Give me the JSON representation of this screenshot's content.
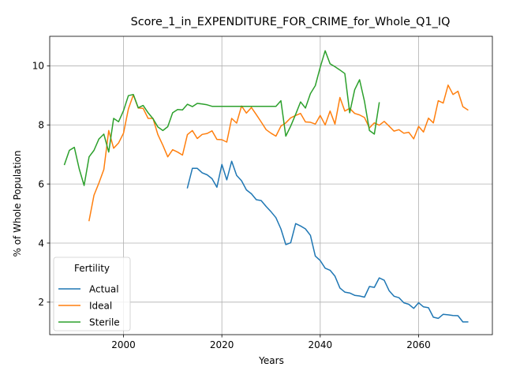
{
  "chart_data": {
    "type": "line",
    "title": "Score_1_in_EXPENDITURE_FOR_CRIME_for_Whole_Q1_IQ",
    "xlabel": "Years",
    "ylabel": "% of Whole Population",
    "xlim": [
      1985,
      2075
    ],
    "ylim": [
      0.9,
      11.0
    ],
    "xticks": [
      2000,
      2020,
      2040,
      2060
    ],
    "yticks": [
      2,
      4,
      6,
      8,
      10
    ],
    "grid": true,
    "legend": {
      "title": "Fertility",
      "placement": "lower-left"
    },
    "series": [
      {
        "name": "Actual",
        "color": "#1f77b4",
        "points": [
          [
            2013,
            5.87
          ],
          [
            2014,
            6.53
          ],
          [
            2015,
            6.53
          ],
          [
            2016,
            6.38
          ],
          [
            2017,
            6.31
          ],
          [
            2018,
            6.18
          ],
          [
            2019,
            5.89
          ],
          [
            2020,
            6.66
          ],
          [
            2021,
            6.14
          ],
          [
            2022,
            6.77
          ],
          [
            2023,
            6.29
          ],
          [
            2024,
            6.11
          ],
          [
            2025,
            5.8
          ],
          [
            2026,
            5.67
          ],
          [
            2027,
            5.47
          ],
          [
            2028,
            5.44
          ],
          [
            2029,
            5.24
          ],
          [
            2030,
            5.06
          ],
          [
            2031,
            4.86
          ],
          [
            2032,
            4.48
          ],
          [
            2033,
            3.95
          ],
          [
            2034,
            4.01
          ],
          [
            2035,
            4.66
          ],
          [
            2036,
            4.58
          ],
          [
            2037,
            4.48
          ],
          [
            2038,
            4.26
          ],
          [
            2039,
            3.56
          ],
          [
            2040,
            3.41
          ],
          [
            2041,
            3.15
          ],
          [
            2042,
            3.08
          ],
          [
            2043,
            2.88
          ],
          [
            2044,
            2.48
          ],
          [
            2045,
            2.34
          ],
          [
            2046,
            2.31
          ],
          [
            2047,
            2.23
          ],
          [
            2048,
            2.21
          ],
          [
            2049,
            2.17
          ],
          [
            2050,
            2.53
          ],
          [
            2051,
            2.5
          ],
          [
            2052,
            2.82
          ],
          [
            2053,
            2.74
          ],
          [
            2054,
            2.39
          ],
          [
            2055,
            2.2
          ],
          [
            2056,
            2.15
          ],
          [
            2057,
            1.98
          ],
          [
            2058,
            1.93
          ],
          [
            2059,
            1.79
          ],
          [
            2060,
            1.98
          ],
          [
            2061,
            1.84
          ],
          [
            2062,
            1.81
          ],
          [
            2063,
            1.49
          ],
          [
            2064,
            1.45
          ],
          [
            2065,
            1.59
          ],
          [
            2066,
            1.57
          ],
          [
            2067,
            1.55
          ],
          [
            2068,
            1.54
          ],
          [
            2069,
            1.33
          ],
          [
            2070,
            1.33
          ]
        ]
      },
      {
        "name": "Ideal",
        "color": "#ff7f0e",
        "points": [
          [
            1993,
            4.76
          ],
          [
            1994,
            5.62
          ],
          [
            1995,
            6.03
          ],
          [
            1996,
            6.49
          ],
          [
            1997,
            7.81
          ],
          [
            1998,
            7.21
          ],
          [
            1999,
            7.39
          ],
          [
            2000,
            7.72
          ],
          [
            2001,
            8.54
          ],
          [
            2002,
            9.02
          ],
          [
            2003,
            8.57
          ],
          [
            2004,
            8.56
          ],
          [
            2005,
            8.22
          ],
          [
            2006,
            8.22
          ],
          [
            2007,
            7.67
          ],
          [
            2008,
            7.31
          ],
          [
            2009,
            6.92
          ],
          [
            2010,
            7.16
          ],
          [
            2011,
            7.08
          ],
          [
            2012,
            6.98
          ],
          [
            2013,
            7.67
          ],
          [
            2014,
            7.81
          ],
          [
            2015,
            7.54
          ],
          [
            2016,
            7.68
          ],
          [
            2017,
            7.71
          ],
          [
            2018,
            7.8
          ],
          [
            2019,
            7.51
          ],
          [
            2020,
            7.5
          ],
          [
            2021,
            7.42
          ],
          [
            2022,
            8.22
          ],
          [
            2023,
            8.06
          ],
          [
            2024,
            8.64
          ],
          [
            2025,
            8.4
          ],
          [
            2026,
            8.59
          ],
          [
            2027,
            8.35
          ],
          [
            2028,
            8.1
          ],
          [
            2029,
            7.84
          ],
          [
            2030,
            7.72
          ],
          [
            2031,
            7.62
          ],
          [
            2032,
            7.96
          ],
          [
            2033,
            8.07
          ],
          [
            2034,
            8.24
          ],
          [
            2035,
            8.32
          ],
          [
            2036,
            8.39
          ],
          [
            2037,
            8.1
          ],
          [
            2038,
            8.09
          ],
          [
            2039,
            8.03
          ],
          [
            2040,
            8.32
          ],
          [
            2041,
            8.0
          ],
          [
            2042,
            8.47
          ],
          [
            2043,
            8.03
          ],
          [
            2044,
            8.93
          ],
          [
            2045,
            8.47
          ],
          [
            2046,
            8.56
          ],
          [
            2047,
            8.39
          ],
          [
            2048,
            8.34
          ],
          [
            2049,
            8.25
          ],
          [
            2050,
            7.9
          ],
          [
            2051,
            8.07
          ],
          [
            2052,
            7.99
          ],
          [
            2053,
            8.12
          ],
          [
            2054,
            7.96
          ],
          [
            2055,
            7.79
          ],
          [
            2056,
            7.84
          ],
          [
            2057,
            7.72
          ],
          [
            2058,
            7.75
          ],
          [
            2059,
            7.53
          ],
          [
            2060,
            7.95
          ],
          [
            2061,
            7.76
          ],
          [
            2062,
            8.23
          ],
          [
            2063,
            8.07
          ],
          [
            2064,
            8.82
          ],
          [
            2065,
            8.74
          ],
          [
            2066,
            9.35
          ],
          [
            2067,
            9.03
          ],
          [
            2068,
            9.14
          ],
          [
            2069,
            8.62
          ],
          [
            2070,
            8.51
          ]
        ]
      },
      {
        "name": "Sterile",
        "color": "#2ca02c",
        "points": [
          [
            1988,
            6.66
          ],
          [
            1989,
            7.14
          ],
          [
            1990,
            7.24
          ],
          [
            1991,
            6.51
          ],
          [
            1992,
            5.95
          ],
          [
            1993,
            6.92
          ],
          [
            1994,
            7.14
          ],
          [
            1995,
            7.52
          ],
          [
            1996,
            7.69
          ],
          [
            1997,
            7.08
          ],
          [
            1998,
            8.22
          ],
          [
            1999,
            8.11
          ],
          [
            2000,
            8.48
          ],
          [
            2001,
            8.99
          ],
          [
            2002,
            9.03
          ],
          [
            2003,
            8.58
          ],
          [
            2004,
            8.66
          ],
          [
            2005,
            8.41
          ],
          [
            2006,
            8.21
          ],
          [
            2007,
            7.93
          ],
          [
            2008,
            7.81
          ],
          [
            2009,
            7.94
          ],
          [
            2010,
            8.41
          ],
          [
            2011,
            8.52
          ],
          [
            2012,
            8.51
          ],
          [
            2013,
            8.7
          ],
          [
            2014,
            8.62
          ],
          [
            2015,
            8.73
          ],
          [
            2016,
            8.71
          ],
          [
            2017,
            8.68
          ],
          [
            2018,
            8.63
          ],
          [
            2019,
            8.63
          ],
          [
            2020,
            8.63
          ],
          [
            2021,
            8.63
          ],
          [
            2022,
            8.63
          ],
          [
            2023,
            8.63
          ],
          [
            2024,
            8.63
          ],
          [
            2025,
            8.63
          ],
          [
            2026,
            8.63
          ],
          [
            2027,
            8.63
          ],
          [
            2028,
            8.63
          ],
          [
            2029,
            8.63
          ],
          [
            2030,
            8.63
          ],
          [
            2031,
            8.63
          ],
          [
            2032,
            8.82
          ],
          [
            2033,
            7.62
          ],
          [
            2034,
            7.96
          ],
          [
            2035,
            8.36
          ],
          [
            2036,
            8.78
          ],
          [
            2037,
            8.57
          ],
          [
            2038,
            9.06
          ],
          [
            2039,
            9.33
          ],
          [
            2040,
            9.95
          ],
          [
            2041,
            10.51
          ],
          [
            2042,
            10.07
          ],
          [
            2043,
            9.97
          ],
          [
            2044,
            9.86
          ],
          [
            2045,
            9.74
          ],
          [
            2046,
            8.41
          ],
          [
            2047,
            9.19
          ],
          [
            2048,
            9.53
          ],
          [
            2049,
            8.8
          ],
          [
            2050,
            7.81
          ],
          [
            2051,
            7.69
          ],
          [
            2052,
            8.75
          ]
        ]
      }
    ]
  }
}
